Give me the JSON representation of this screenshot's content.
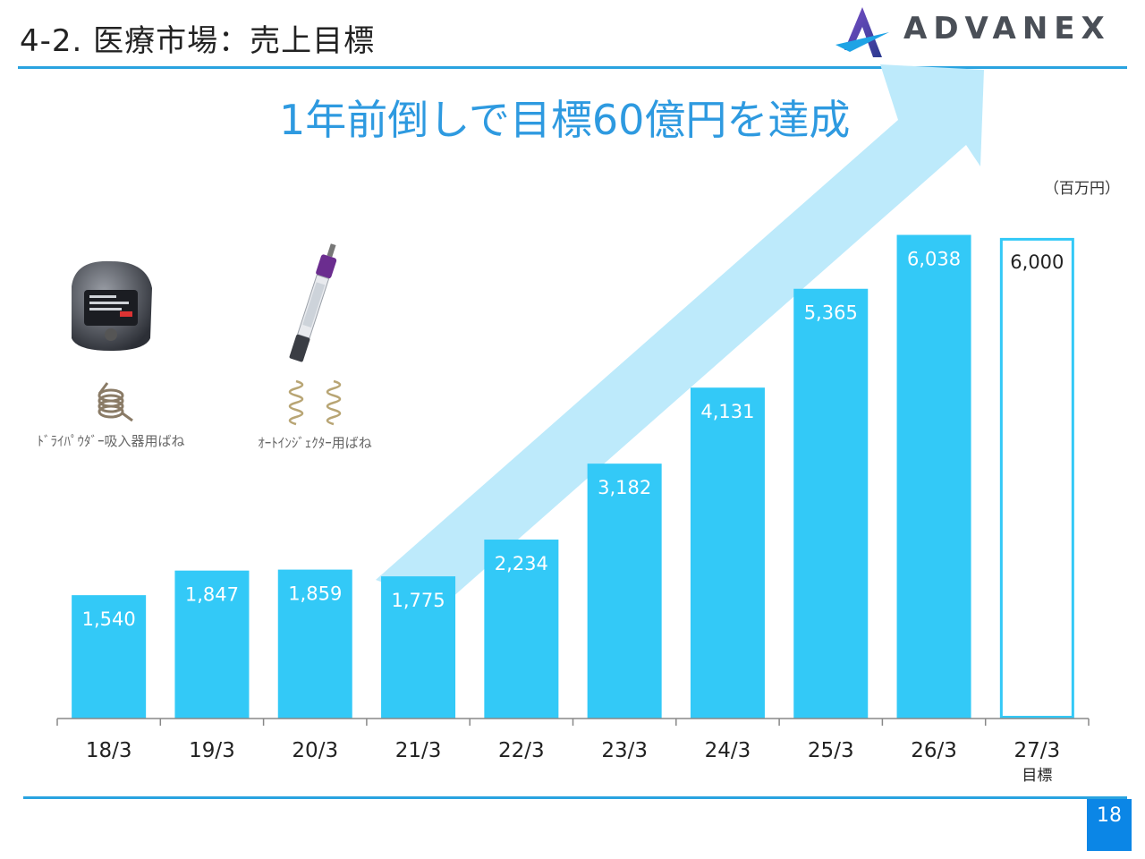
{
  "header": {
    "title": "4-2.  医療市場：売上目標",
    "logo_text": "ADVANEX"
  },
  "headline": "1年前倒しで目標60億円を達成",
  "unit_label": "（百万円）",
  "products": [
    {
      "label": "ﾄﾞﾗｲﾊﾟｳﾀﾞｰ吸入器用ばね",
      "image_icon": "dry-powder-inhaler-image",
      "spring_icon": "torsion-spring-image"
    },
    {
      "label": "ｵｰﾄｲﾝｼﾞｪｸﾀｰ用ばね",
      "image_icon": "auto-injector-image",
      "spring_icon": "compression-springs-image"
    }
  ],
  "colors": {
    "bar": "#33c9f7",
    "target_outline": "#33c9f7",
    "arrow": "#bdeafb",
    "accent": "#29a3e0",
    "headline": "#2e9ae0",
    "page_badge": "#0b86e6"
  },
  "chart_data": {
    "type": "bar",
    "categories": [
      "18/3",
      "19/3",
      "20/3",
      "21/3",
      "22/3",
      "23/3",
      "24/3",
      "25/3",
      "26/3",
      "27/3"
    ],
    "values": [
      1540,
      1847,
      1859,
      1775,
      2234,
      3182,
      4131,
      5365,
      6038,
      6000
    ],
    "value_labels": [
      "1,540",
      "1,847",
      "1,859",
      "1,775",
      "2,234",
      "3,182",
      "4,131",
      "5,365",
      "6,038",
      "6,000"
    ],
    "target_index": 9,
    "target_sublabel": "目標",
    "ylim": [
      0,
      6200
    ],
    "title": "",
    "xlabel": "",
    "ylabel": "",
    "grid": false,
    "legend": false
  },
  "footer": {
    "page_number": "18"
  }
}
